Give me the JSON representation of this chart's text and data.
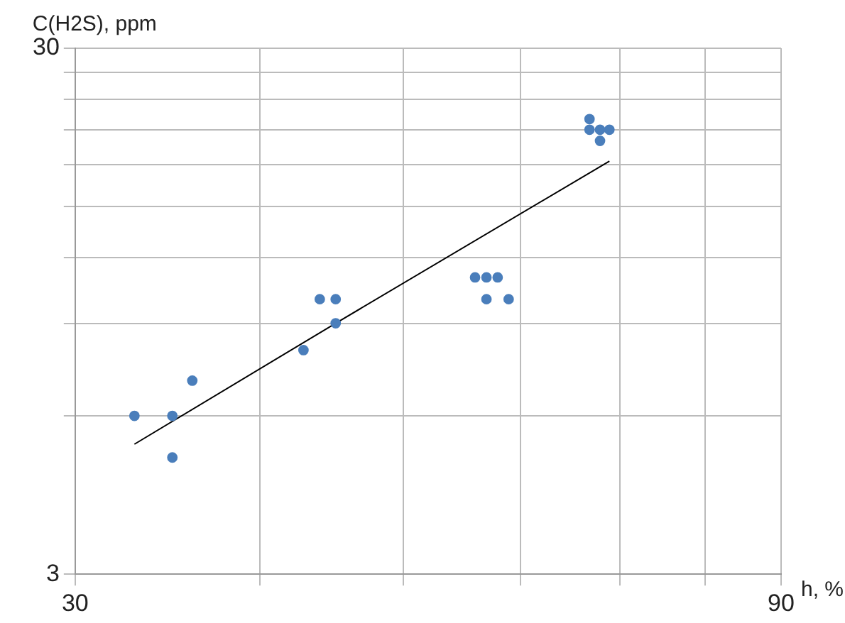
{
  "chart_data": {
    "type": "scatter",
    "xlabel": "h, %",
    "ylabel": "C(H2S), ppm",
    "log": "xy",
    "grid": true,
    "legend": false,
    "marker": "circle",
    "xlim": [
      30,
      90
    ],
    "ylim": [
      3,
      30
    ],
    "xticks": [
      30,
      {
        "value": 40,
        "label": null
      },
      {
        "value": 50,
        "label": null
      },
      {
        "value": 60,
        "label": null
      },
      {
        "value": 70,
        "label": null
      },
      {
        "value": 80,
        "label": null
      },
      90
    ],
    "yticks": [
      3,
      {
        "value": 6,
        "label": null
      },
      {
        "value": 9,
        "label": null
      },
      {
        "value": 12,
        "label": null
      },
      {
        "value": 15,
        "label": null
      },
      {
        "value": 18,
        "label": null
      },
      {
        "value": 21,
        "label": null
      },
      {
        "value": 24,
        "label": null
      },
      {
        "value": 27,
        "label": null
      },
      30
    ],
    "series": [
      {
        "color": "#4a7ebb",
        "x": [
          32.9,
          34.9,
          34.9,
          36,
          42.8,
          43.9,
          45,
          45,
          55.9,
          56.9,
          57.9,
          56.9,
          58.9,
          66.8,
          66.8,
          67.9,
          68.9,
          67.9
        ],
        "values": [
          6,
          6,
          5,
          7,
          8,
          10,
          10,
          9,
          11,
          11,
          11,
          10,
          10,
          22,
          21,
          21,
          21,
          20
        ]
      },
      {
        "type": "line",
        "color": "#000000",
        "marker": "none",
        "x": [
          32.9,
          45,
          68.9
        ],
        "values": [
          5.3,
          9,
          18.3
        ]
      }
    ]
  }
}
